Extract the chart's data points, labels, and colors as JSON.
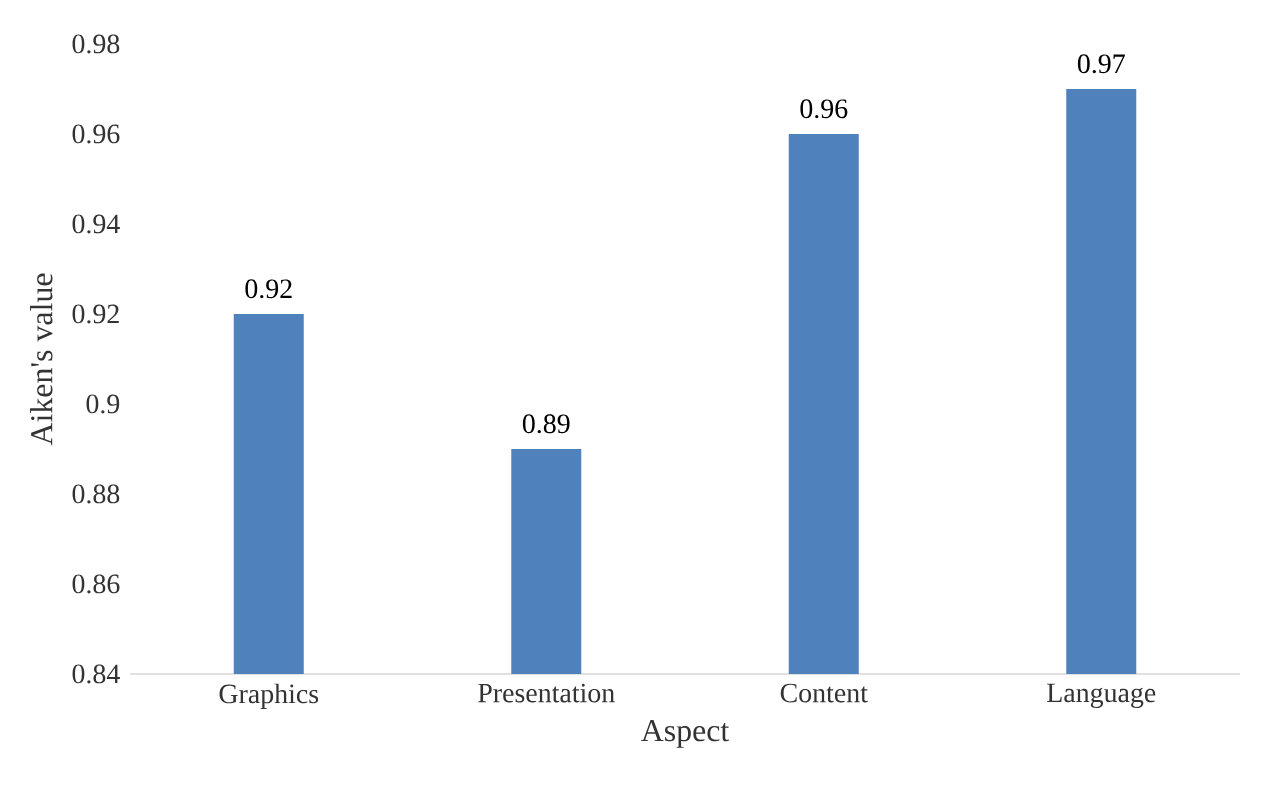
{
  "chart_data": {
    "type": "bar",
    "xlabel": "Aspect",
    "ylabel": "Aiken's value",
    "categories": [
      "Graphics",
      "Presentation",
      "Content",
      "Language"
    ],
    "values": [
      0.92,
      0.89,
      0.96,
      0.97
    ],
    "color": "#4f81bd",
    "ylim": [
      0.84,
      0.98
    ],
    "yticks": [
      0.84,
      0.86,
      0.88,
      0.9,
      0.92,
      0.94,
      0.96,
      0.98
    ],
    "data_labels": true,
    "grid": false
  }
}
